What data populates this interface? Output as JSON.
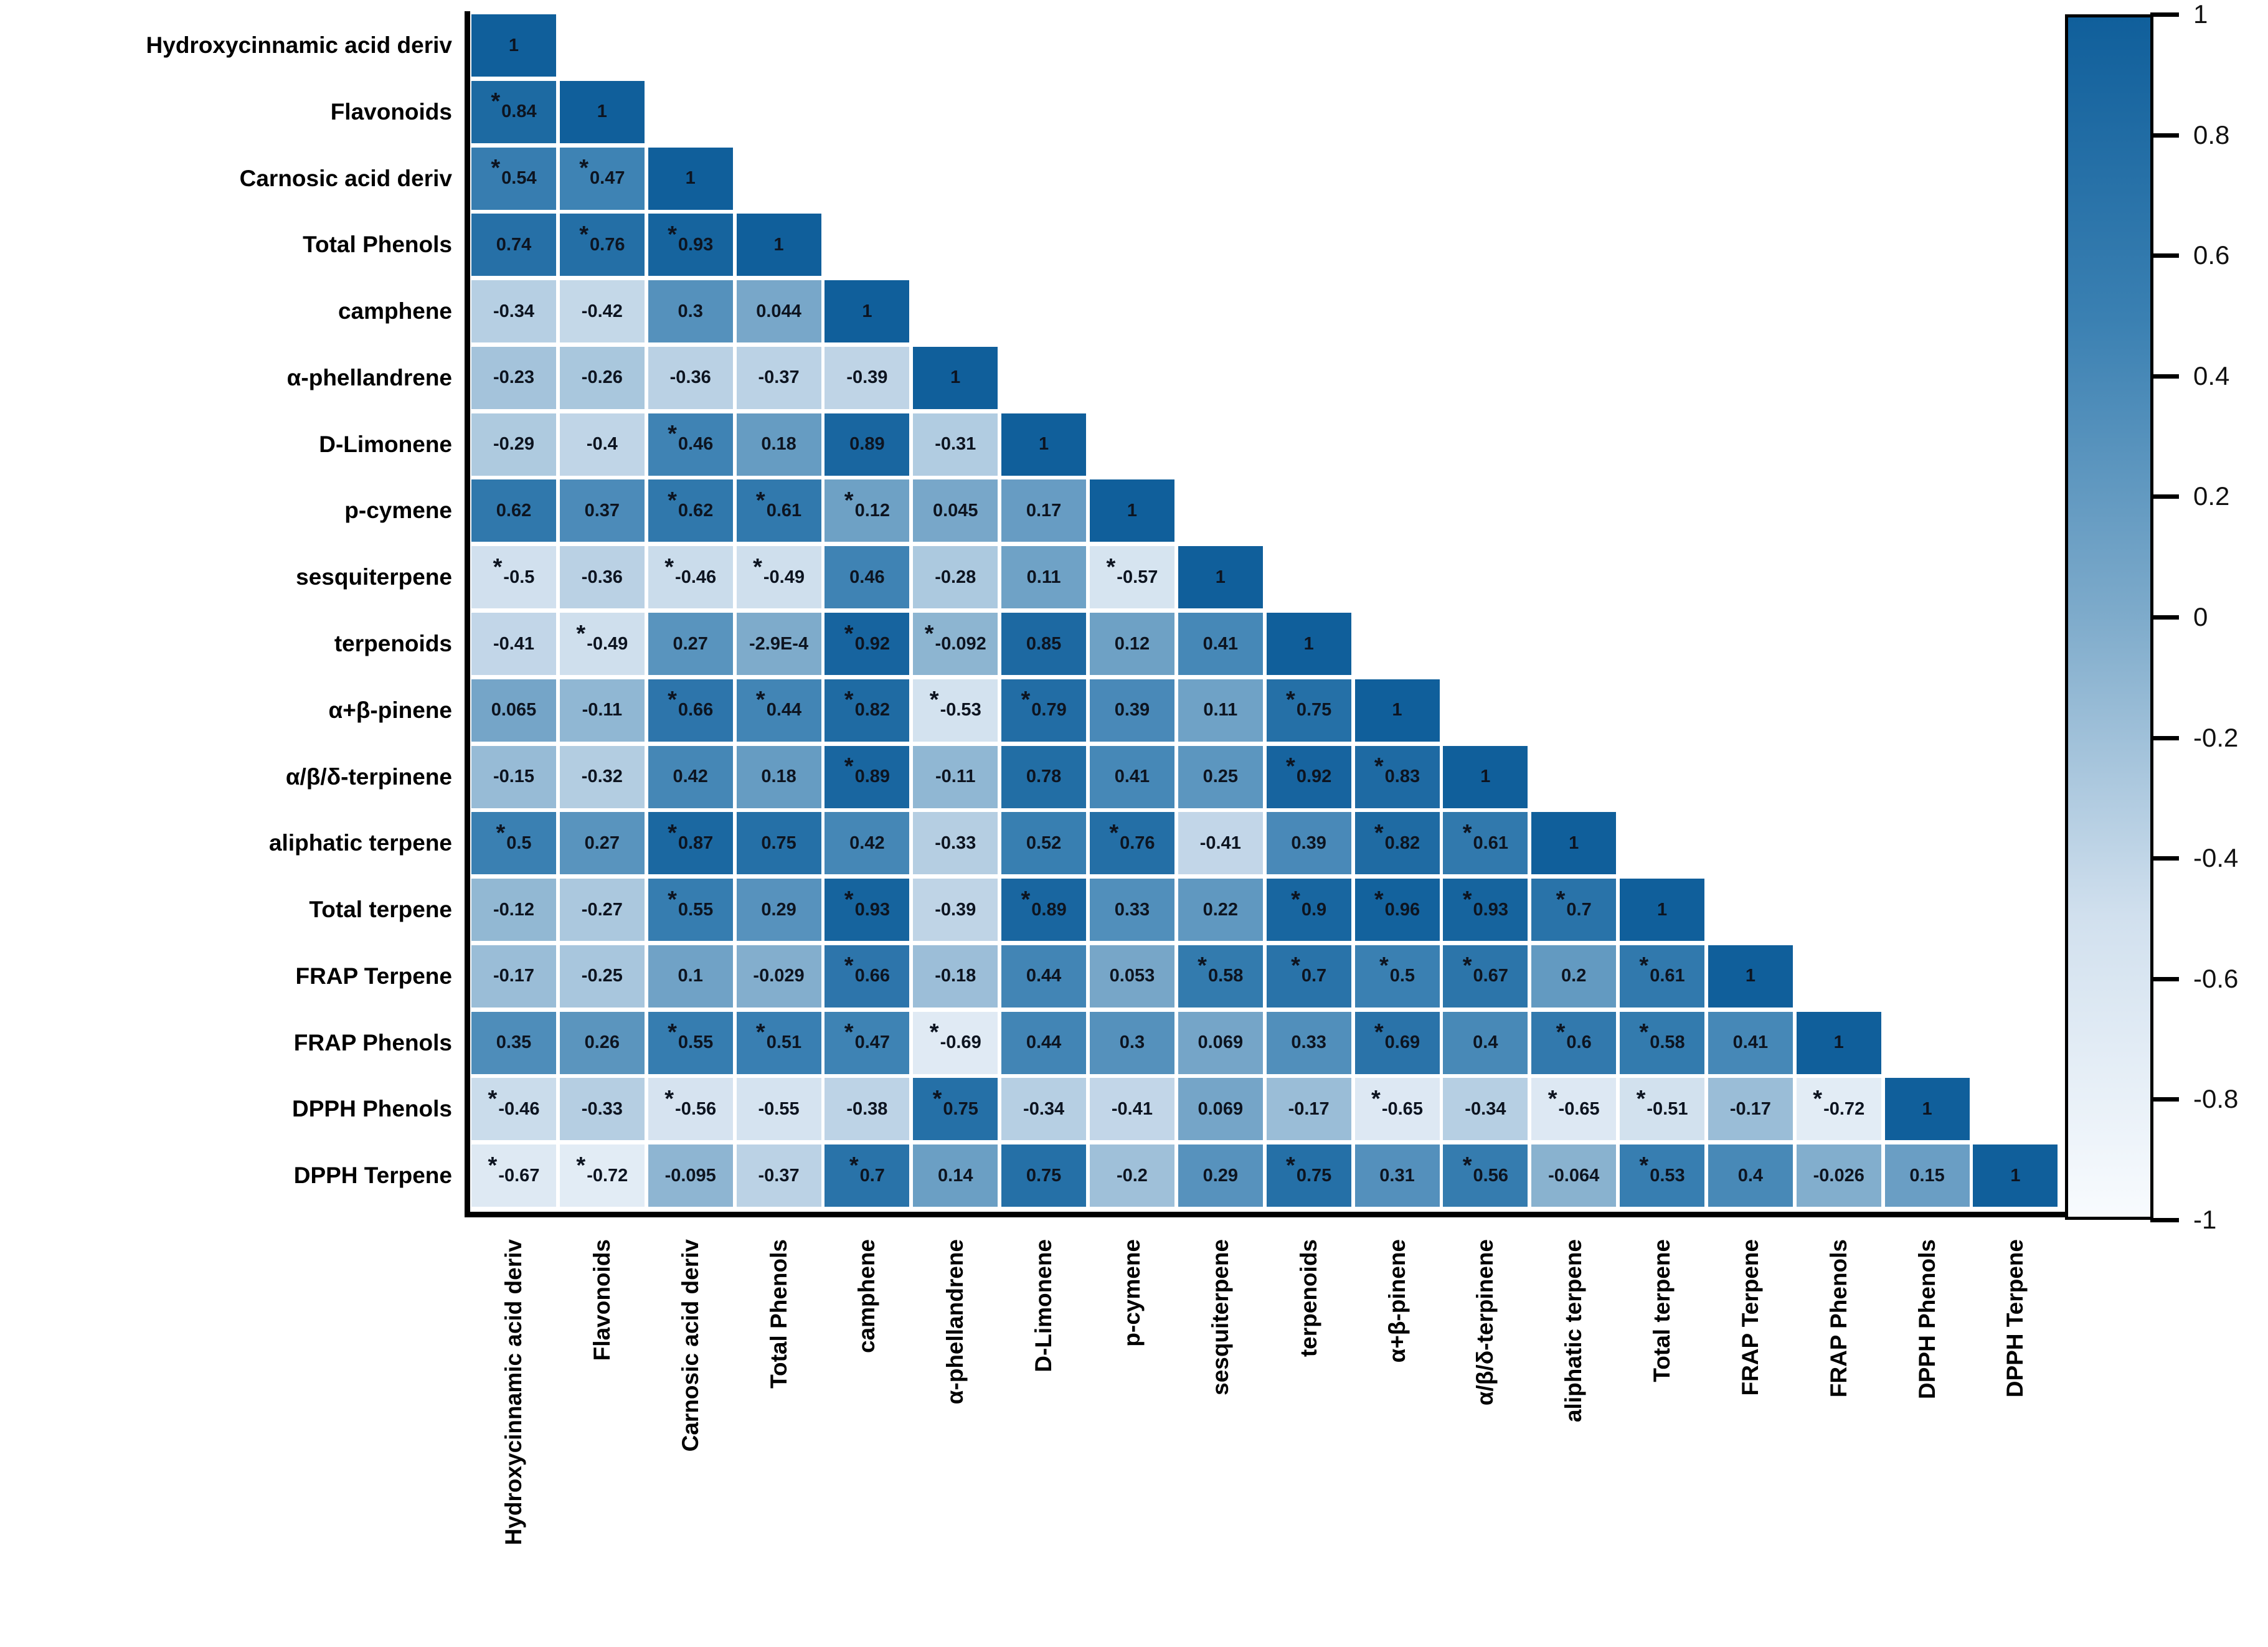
{
  "chart_data": {
    "type": "heatmap",
    "subtype": "lower-triangular-correlation-matrix",
    "title": "",
    "significance_marker": "*",
    "value_range": [
      -1,
      1
    ],
    "variables": [
      "Hydroxycinnamic acid deriv",
      "Flavonoids",
      "Carnosic acid deriv",
      "Total Phenols",
      "camphene",
      "α-phellandrene",
      "D-Limonene",
      "p-cymene",
      "sesquiterpene",
      "terpenoids",
      "α+β-pinene",
      "α/β/δ-terpinene",
      "aliphatic terpene",
      "Total terpene",
      "FRAP Terpene",
      "FRAP Phenols",
      "DPPH Phenols",
      "DPPH Terpene"
    ],
    "rows": [
      {
        "label": "Hydroxycinnamic acid deriv",
        "values": [
          "1"
        ],
        "sig": [
          0
        ]
      },
      {
        "label": "Flavonoids",
        "values": [
          "0.84",
          "1"
        ],
        "sig": [
          1,
          0
        ]
      },
      {
        "label": "Carnosic acid deriv",
        "values": [
          "0.54",
          "0.47",
          "1"
        ],
        "sig": [
          1,
          1,
          0
        ]
      },
      {
        "label": "Total Phenols",
        "values": [
          "0.74",
          "0.76",
          "0.93",
          "1"
        ],
        "sig": [
          0,
          1,
          1,
          0
        ]
      },
      {
        "label": "camphene",
        "values": [
          "-0.34",
          "-0.42",
          "0.3",
          "0.044",
          "1"
        ],
        "sig": [
          0,
          0,
          0,
          0,
          0
        ]
      },
      {
        "label": "α-phellandrene",
        "values": [
          "-0.23",
          "-0.26",
          "-0.36",
          "-0.37",
          "-0.39",
          "1"
        ],
        "sig": [
          0,
          0,
          0,
          0,
          0,
          0
        ]
      },
      {
        "label": "D-Limonene",
        "values": [
          "-0.29",
          "-0.4",
          "0.46",
          "0.18",
          "0.89",
          "-0.31",
          "1"
        ],
        "sig": [
          0,
          0,
          1,
          0,
          0,
          0,
          0
        ]
      },
      {
        "label": "p-cymene",
        "values": [
          "0.62",
          "0.37",
          "0.62",
          "0.61",
          "0.12",
          "0.045",
          "0.17",
          "1"
        ],
        "sig": [
          0,
          0,
          1,
          1,
          1,
          0,
          0,
          0
        ]
      },
      {
        "label": "sesquiterpene",
        "values": [
          "-0.5",
          "-0.36",
          "-0.46",
          "-0.49",
          "0.46",
          "-0.28",
          "0.11",
          "-0.57",
          "1"
        ],
        "sig": [
          1,
          0,
          1,
          1,
          0,
          0,
          0,
          1,
          0
        ]
      },
      {
        "label": "terpenoids",
        "values": [
          "-0.41",
          "-0.49",
          "0.27",
          "-2.9E-4",
          "0.92",
          "-0.092",
          "0.85",
          "0.12",
          "0.41",
          "1"
        ],
        "sig": [
          0,
          1,
          0,
          0,
          1,
          1,
          0,
          0,
          0,
          0
        ]
      },
      {
        "label": "α+β-pinene",
        "values": [
          "0.065",
          "-0.11",
          "0.66",
          "0.44",
          "0.82",
          "-0.53",
          "0.79",
          "0.39",
          "0.11",
          "0.75",
          "1"
        ],
        "sig": [
          0,
          0,
          1,
          1,
          1,
          1,
          1,
          0,
          0,
          1,
          0
        ]
      },
      {
        "label": "α/β/δ-terpinene",
        "values": [
          "-0.15",
          "-0.32",
          "0.42",
          "0.18",
          "0.89",
          "-0.11",
          "0.78",
          "0.41",
          "0.25",
          "0.92",
          "0.83",
          "1"
        ],
        "sig": [
          0,
          0,
          0,
          0,
          1,
          0,
          0,
          0,
          0,
          1,
          1,
          0
        ]
      },
      {
        "label": "aliphatic terpene",
        "values": [
          "0.5",
          "0.27",
          "0.87",
          "0.75",
          "0.42",
          "-0.33",
          "0.52",
          "0.76",
          "-0.41",
          "0.39",
          "0.82",
          "0.61",
          "1"
        ],
        "sig": [
          1,
          0,
          1,
          0,
          0,
          0,
          0,
          1,
          0,
          0,
          1,
          1,
          0
        ]
      },
      {
        "label": "Total terpene",
        "values": [
          "-0.12",
          "-0.27",
          "0.55",
          "0.29",
          "0.93",
          "-0.39",
          "0.89",
          "0.33",
          "0.22",
          "0.9",
          "0.96",
          "0.93",
          "0.7",
          "1"
        ],
        "sig": [
          0,
          0,
          1,
          0,
          1,
          0,
          1,
          0,
          0,
          1,
          1,
          1,
          1,
          0
        ]
      },
      {
        "label": "FRAP Terpene",
        "values": [
          "-0.17",
          "-0.25",
          "0.1",
          "-0.029",
          "0.66",
          "-0.18",
          "0.44",
          "0.053",
          "0.58",
          "0.7",
          "0.5",
          "0.67",
          "0.2",
          "0.61",
          "1"
        ],
        "sig": [
          0,
          0,
          0,
          0,
          1,
          0,
          0,
          0,
          1,
          1,
          1,
          1,
          0,
          1,
          0
        ]
      },
      {
        "label": "FRAP Phenols",
        "values": [
          "0.35",
          "0.26",
          "0.55",
          "0.51",
          "0.47",
          "-0.69",
          "0.44",
          "0.3",
          "0.069",
          "0.33",
          "0.69",
          "0.4",
          "0.6",
          "0.58",
          "0.41",
          "1"
        ],
        "sig": [
          0,
          0,
          1,
          1,
          1,
          1,
          0,
          0,
          0,
          0,
          1,
          0,
          1,
          1,
          0,
          0
        ]
      },
      {
        "label": "DPPH Phenols",
        "values": [
          "-0.46",
          "-0.33",
          "-0.56",
          "-0.55",
          "-0.38",
          "0.75",
          "-0.34",
          "-0.41",
          "0.069",
          "-0.17",
          "-0.65",
          "-0.34",
          "-0.65",
          "-0.51",
          "-0.17",
          "-0.72",
          "1"
        ],
        "sig": [
          1,
          0,
          1,
          0,
          0,
          1,
          0,
          0,
          0,
          0,
          1,
          0,
          1,
          1,
          0,
          1,
          0
        ]
      },
      {
        "label": "DPPH Terpene",
        "values": [
          "-0.67",
          "-0.72",
          "-0.095",
          "-0.37",
          "0.7",
          "0.14",
          "0.75",
          "-0.2",
          "0.29",
          "0.75",
          "0.31",
          "0.56",
          "-0.064",
          "0.53",
          "0.4",
          "-0.026",
          "0.15",
          "1"
        ],
        "sig": [
          1,
          1,
          0,
          0,
          1,
          0,
          0,
          0,
          0,
          1,
          0,
          1,
          0,
          1,
          0,
          0,
          0,
          0
        ]
      }
    ],
    "colorbar": {
      "ticks": [
        "1",
        "0.8",
        "0.6",
        "0.4",
        "0.2",
        "0",
        "-0.2",
        "-0.4",
        "-0.6",
        "-0.8",
        "-1"
      ],
      "position": "right"
    },
    "colors": {
      "scale_anchors": [
        "#f8fbfe",
        "#d1e0ee",
        "#7eabcb",
        "#3a80b2",
        "#105f9b"
      ],
      "cell_text": "#0d1420",
      "axis": "#000000",
      "background": "#ffffff"
    },
    "legend_position": "none",
    "grid": "white gaps between cells"
  }
}
